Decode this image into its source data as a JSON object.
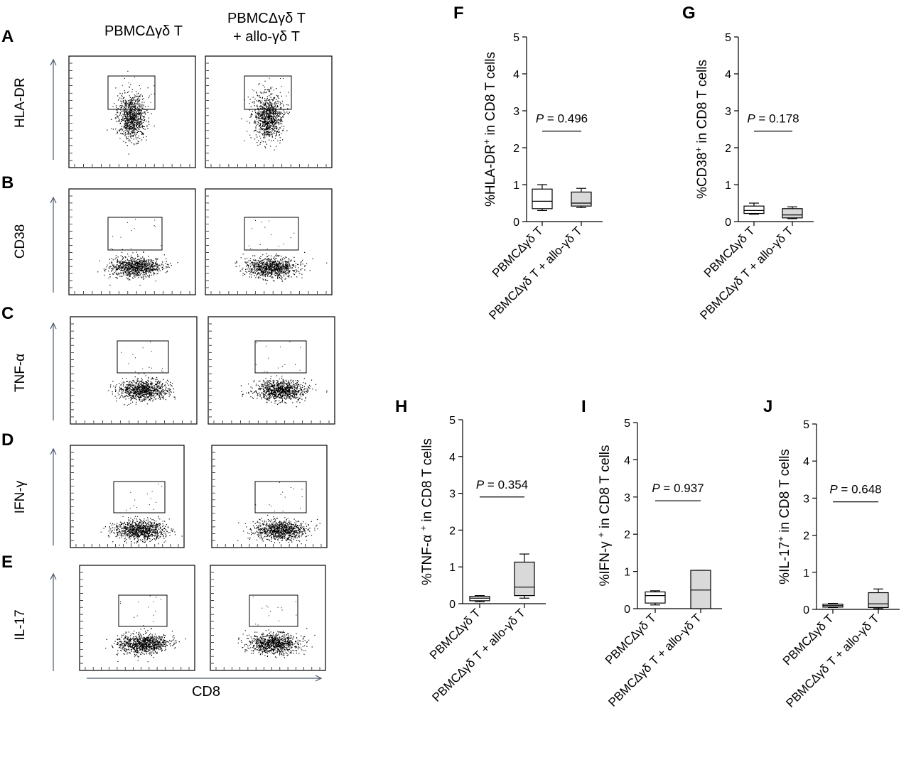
{
  "flow": {
    "col_labels": [
      "PBMCΔγδ T",
      "PBMCΔγδ T",
      "+ allo-γδ T"
    ],
    "x_axis_label": "CD8",
    "rows": [
      {
        "panel": "A",
        "marker": "HLA-DR"
      },
      {
        "panel": "B",
        "marker": "CD38"
      },
      {
        "panel": "C",
        "marker": "TNF-α"
      },
      {
        "panel": "D",
        "marker": "IFN-γ"
      },
      {
        "panel": "E",
        "marker": "IL-17"
      }
    ]
  },
  "chart_data": [
    {
      "panel": "F",
      "type": "box",
      "ylabel_parts": [
        "%HLA-DR",
        "+",
        " in CD8 T cells"
      ],
      "ylim": [
        0,
        5
      ],
      "yticks": [
        "0",
        "1",
        "2",
        "3",
        "4",
        "5"
      ],
      "categories": [
        "PBMC∆γδ T",
        "PBMC∆γδ T + allo-γδ T"
      ],
      "p_label": "P",
      "p_text": " = 0.496",
      "boxes": [
        {
          "min": 0.3,
          "q1": 0.35,
          "median": 0.55,
          "q3": 0.88,
          "max": 1.0,
          "fill": "#ffffff"
        },
        {
          "min": 0.38,
          "q1": 0.42,
          "median": 0.5,
          "q3": 0.8,
          "max": 0.9,
          "fill": "#d9d9d9"
        }
      ]
    },
    {
      "panel": "G",
      "type": "box",
      "ylabel_parts": [
        "%CD38",
        "+",
        " in CD8 T cells"
      ],
      "ylim": [
        0,
        5
      ],
      "yticks": [
        "0",
        "1",
        "2",
        "3",
        "4",
        "5"
      ],
      "categories": [
        "PBMC∆γδ T",
        "PBMC∆γδ T + allo-γδ T"
      ],
      "p_label": "P",
      "p_text": " = 0.178",
      "boxes": [
        {
          "min": 0.2,
          "q1": 0.22,
          "median": 0.3,
          "q3": 0.42,
          "max": 0.5,
          "fill": "#ffffff"
        },
        {
          "min": 0.08,
          "q1": 0.1,
          "median": 0.18,
          "q3": 0.35,
          "max": 0.4,
          "fill": "#d9d9d9"
        }
      ]
    },
    {
      "panel": "H",
      "type": "box",
      "ylabel_parts": [
        "%TNF-α ",
        "+",
        " in CD8 T cells"
      ],
      "ylim": [
        0,
        5
      ],
      "yticks": [
        "0",
        "1",
        "2",
        "3",
        "4",
        "5"
      ],
      "categories": [
        "PBMC∆γδ T",
        "PBMC∆γδ T + allo-γδ T"
      ],
      "p_label": "P",
      "p_text": " = 0.354",
      "boxes": [
        {
          "min": 0.05,
          "q1": 0.08,
          "median": 0.15,
          "q3": 0.2,
          "max": 0.22,
          "fill": "#ffffff"
        },
        {
          "min": 0.15,
          "q1": 0.22,
          "median": 0.45,
          "q3": 1.13,
          "max": 1.35,
          "fill": "#d9d9d9"
        }
      ]
    },
    {
      "panel": "I",
      "type": "box",
      "ylabel_parts": [
        "%IFN-γ ",
        "+",
        " in CD8 T cells"
      ],
      "ylim": [
        0,
        5
      ],
      "yticks": [
        "0",
        "1",
        "2",
        "3",
        "4",
        "5"
      ],
      "categories": [
        "PBMC∆γδ T",
        "PBMC∆γδ T + allo-γδ T"
      ],
      "p_label": "P",
      "p_text": " = 0.937",
      "boxes": [
        {
          "min": 0.1,
          "q1": 0.15,
          "median": 0.35,
          "q3": 0.45,
          "max": 0.48,
          "fill": "#ffffff"
        },
        {
          "min": 0.0,
          "q1": 0.0,
          "median": 0.5,
          "q3": 1.03,
          "max": 1.03,
          "fill": "#d9d9d9"
        }
      ]
    },
    {
      "panel": "J",
      "type": "box",
      "ylabel_parts": [
        "%IL-17",
        "+",
        " in CD8 T cells"
      ],
      "ylim": [
        0,
        5
      ],
      "yticks": [
        "0",
        "1",
        "2",
        "3",
        "4",
        "5"
      ],
      "categories": [
        "PBMC∆γδ T",
        "PBMC∆γδ T + allo-γδ T"
      ],
      "p_label": "P",
      "p_text": " = 0.648",
      "boxes": [
        {
          "min": 0.05,
          "q1": 0.06,
          "median": 0.1,
          "q3": 0.14,
          "max": 0.16,
          "fill": "#ffffff"
        },
        {
          "min": 0.02,
          "q1": 0.05,
          "median": 0.15,
          "q3": 0.45,
          "max": 0.55,
          "fill": "#d9d9d9"
        }
      ]
    }
  ]
}
